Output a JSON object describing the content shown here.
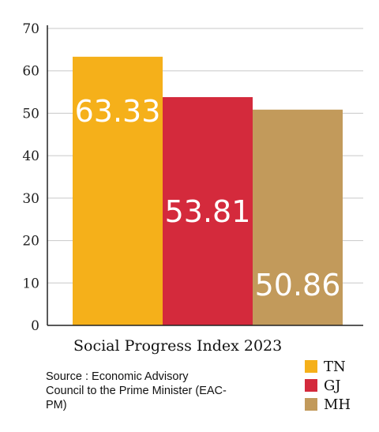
{
  "chart_data": {
    "type": "bar",
    "title": "Social Progress Index 2023",
    "categories": [
      "TN",
      "GJ",
      "MH"
    ],
    "values": [
      63.33,
      53.81,
      50.86
    ],
    "data_labels": [
      "63.33",
      "53.81",
      "50.86"
    ],
    "colors": [
      "#f5b01a",
      "#d42a3c",
      "#c29a5b"
    ],
    "ylim": [
      0,
      70
    ],
    "yticks": [
      "0",
      "10",
      "20",
      "30",
      "40",
      "50",
      "60",
      "70"
    ],
    "grid": true,
    "legend_position": "bottom-right"
  },
  "source": "Source : Economic Advisory Council to the Prime Minister (EAC-PM)",
  "legend": [
    {
      "label": "TN",
      "color": "#f5b01a"
    },
    {
      "label": "GJ",
      "color": "#d42a3c"
    },
    {
      "label": "MH",
      "color": "#c29a5b"
    }
  ]
}
